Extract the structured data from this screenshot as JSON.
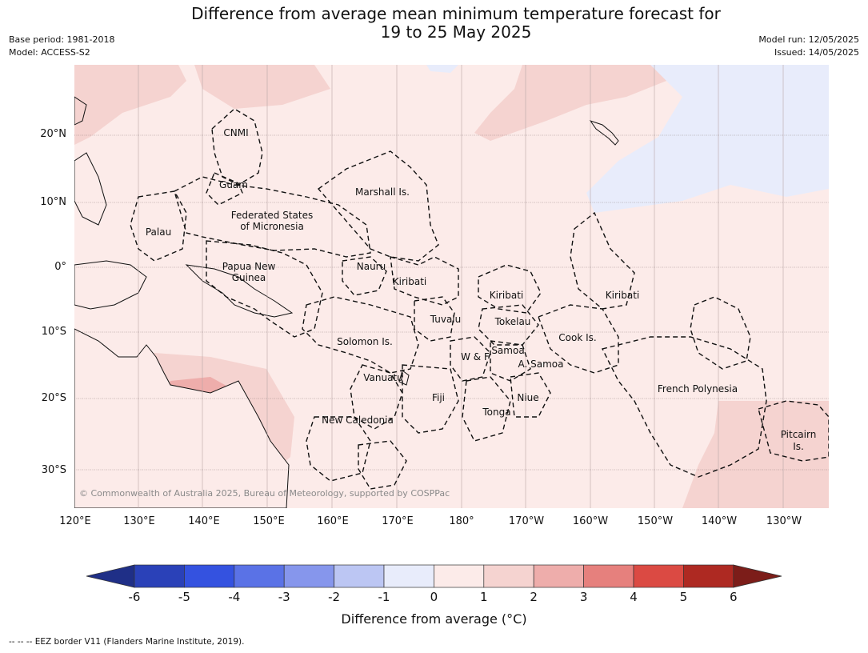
{
  "header": {
    "title_line1": "Difference from average mean minimum temperature forecast for",
    "title_line2": "19 to 25 May 2025",
    "base_period": "Base period: 1981-2018",
    "model": "Model: ACCESS-S2",
    "model_run": "Model run: 12/05/2025",
    "issued": "Issued: 14/05/2025"
  },
  "map": {
    "lat_labels": [
      "20°N",
      "10°N",
      "0°",
      "10°S",
      "20°S",
      "30°S"
    ],
    "lon_labels": [
      "120°E",
      "130°E",
      "140°E",
      "150°E",
      "160°E",
      "170°E",
      "180°",
      "170°W",
      "160°W",
      "150°W",
      "140°W",
      "130°W"
    ],
    "regions": [
      {
        "name": "cnmi",
        "lines": [
          "CNMI"
        ]
      },
      {
        "name": "guam",
        "lines": [
          "Guam"
        ]
      },
      {
        "name": "marshall",
        "lines": [
          "Marshall Is."
        ]
      },
      {
        "name": "fsm",
        "lines": [
          "Federated States",
          "of Micronesia"
        ]
      },
      {
        "name": "palau",
        "lines": [
          "Palau"
        ]
      },
      {
        "name": "png",
        "lines": [
          "Papua New",
          "Guinea"
        ]
      },
      {
        "name": "nauru",
        "lines": [
          "Nauru"
        ]
      },
      {
        "name": "kiribati1",
        "lines": [
          "Kiribati"
        ]
      },
      {
        "name": "kiribati2",
        "lines": [
          "Kiribati"
        ]
      },
      {
        "name": "kiribati3",
        "lines": [
          "Kiribati"
        ]
      },
      {
        "name": "tuvalu",
        "lines": [
          "Tuvalu"
        ]
      },
      {
        "name": "tokelau",
        "lines": [
          "Tokelau"
        ]
      },
      {
        "name": "cook",
        "lines": [
          "Cook Is."
        ]
      },
      {
        "name": "solomon",
        "lines": [
          "Solomon Is."
        ]
      },
      {
        "name": "samoa",
        "lines": [
          "Samoa"
        ]
      },
      {
        "name": "wf",
        "lines": [
          "W & F"
        ]
      },
      {
        "name": "asamoa",
        "lines": [
          "A. Samoa"
        ]
      },
      {
        "name": "vanuatu",
        "lines": [
          "Vanuatu"
        ]
      },
      {
        "name": "fiji",
        "lines": [
          "Fiji"
        ]
      },
      {
        "name": "niue",
        "lines": [
          "Niue"
        ]
      },
      {
        "name": "tonga",
        "lines": [
          "Tonga"
        ]
      },
      {
        "name": "frenchpoly",
        "lines": [
          "French Polynesia"
        ]
      },
      {
        "name": "newcal",
        "lines": [
          "New Caledonia"
        ]
      },
      {
        "name": "pitcairn",
        "lines": [
          "Pitcairn",
          "Is."
        ]
      }
    ],
    "copyright": "© Commonwealth of Australia 2025, Bureau of Meteorology, supported by COSPPac"
  },
  "colorbar": {
    "ticks": [
      "-6",
      "-5",
      "-4",
      "-3",
      "-2",
      "-1",
      "0",
      "1",
      "2",
      "3",
      "4",
      "5",
      "6"
    ],
    "colors": [
      "#1f2f87",
      "#2a41b8",
      "#3452e0",
      "#5a72e6",
      "#8696ec",
      "#bcc6f3",
      "#e8ecfb",
      "#fcebe9",
      "#f5d3d0",
      "#eeadab",
      "#e6807d",
      "#db4a43",
      "#ae2922",
      "#7c1d19"
    ],
    "label": "Difference from average (°C)"
  },
  "footer": "--  --  -- EEZ border V11 (Flanders Marine Institute, 2019)."
}
